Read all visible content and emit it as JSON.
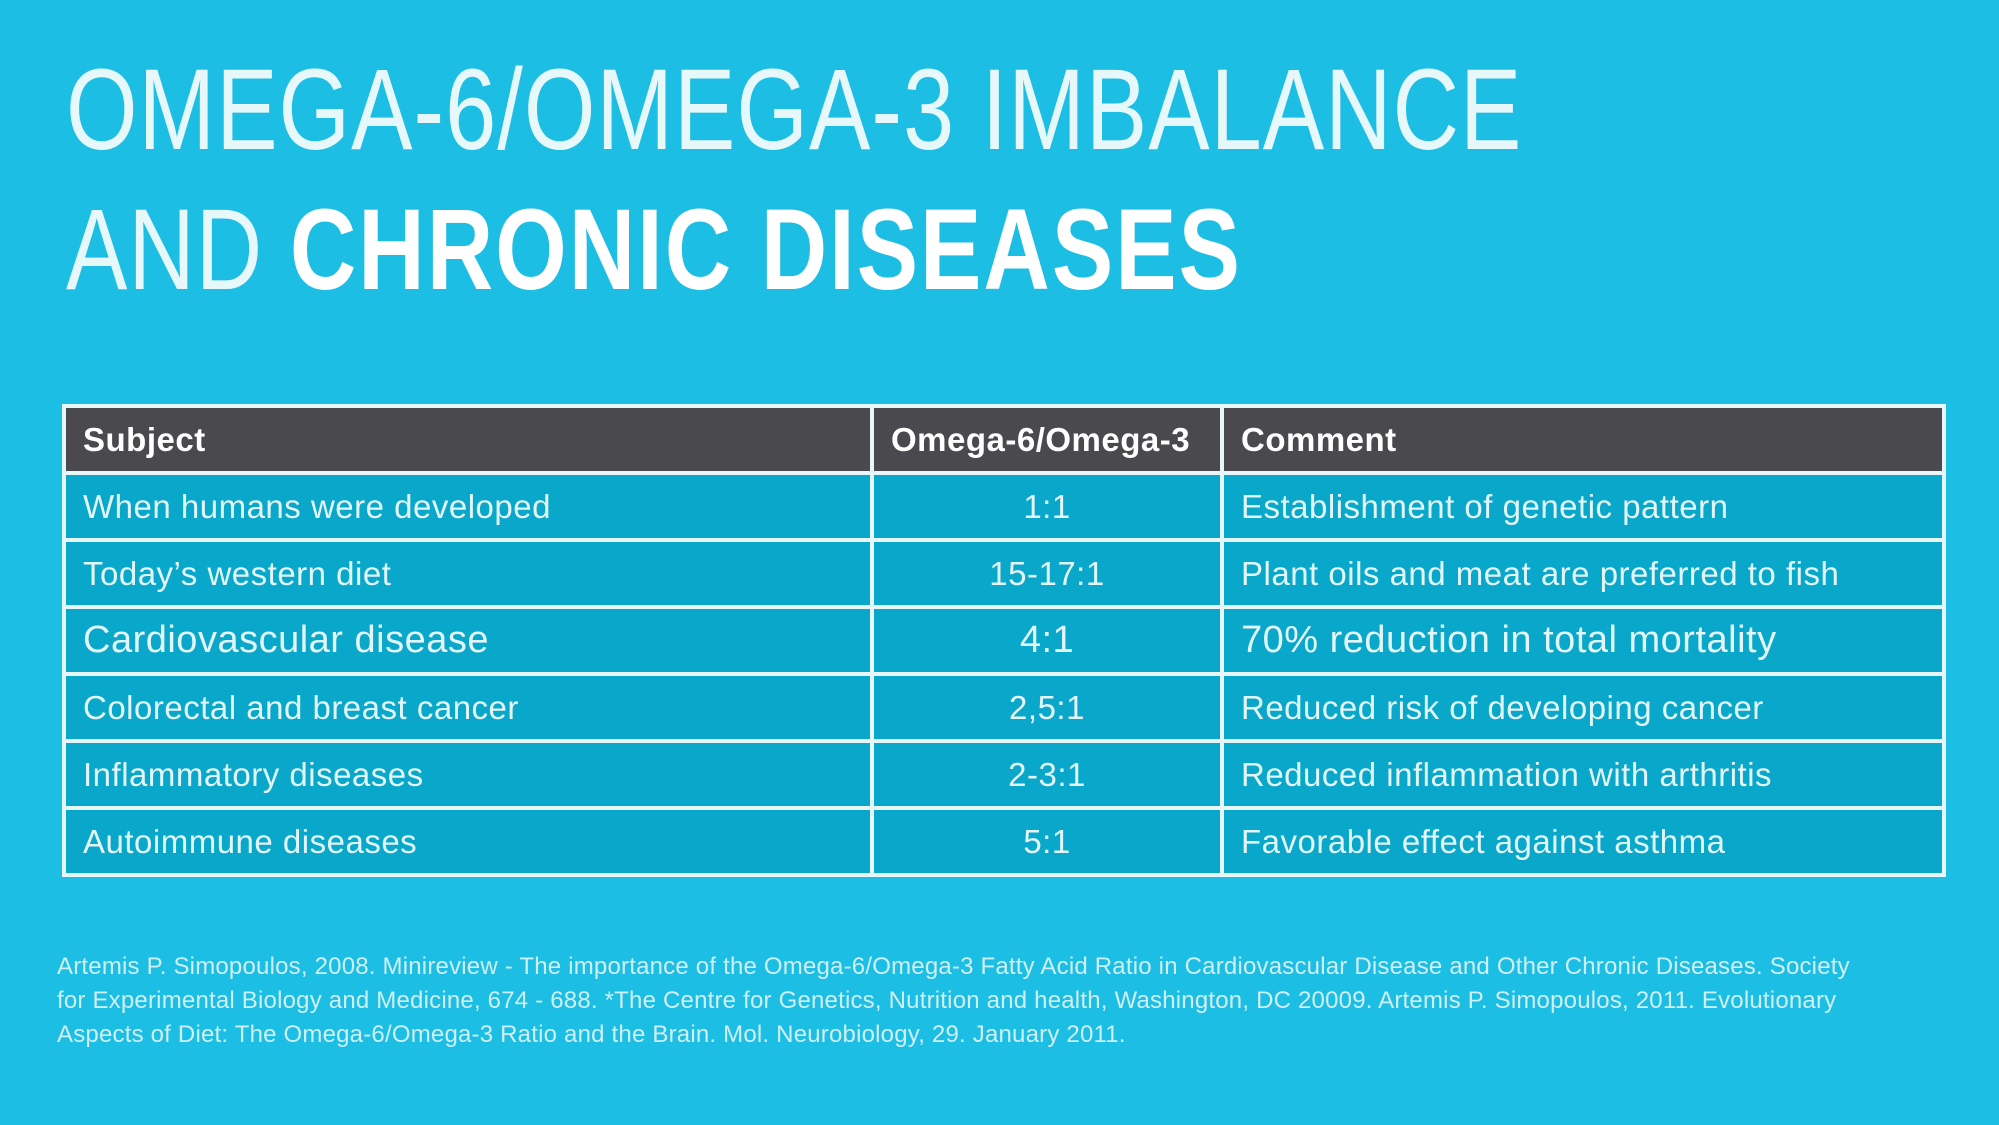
{
  "colors": {
    "background": "#1DBEE4",
    "cell_background": "#09A7C9",
    "header_background": "#4A494D",
    "border": "#E7F6F9",
    "title_thin": "#E6F8FA",
    "title_bold": "#FFFFFF",
    "citation_text": "#CDEFF5"
  },
  "title": {
    "line1": "OMEGA-6/OMEGA-3 IMBALANCE",
    "line2_thin": "AND ",
    "line2_bold": "CHRONIC DISEASES"
  },
  "table": {
    "columns": [
      "Subject",
      "Omega-6/Omega-3",
      "Comment"
    ],
    "rows": [
      {
        "subject": "When humans were developed",
        "ratio": "1:1",
        "comment": "Establishment of genetic pattern",
        "emphasis": false
      },
      {
        "subject": "Today’s western diet",
        "ratio": "15-17:1",
        "comment": "Plant oils and meat are preferred to fish",
        "emphasis": false
      },
      {
        "subject": "Cardiovascular disease",
        "ratio": "4:1",
        "comment": "70% reduction in total mortality",
        "emphasis": true
      },
      {
        "subject": "Colorectal and breast cancer",
        "ratio": "2,5:1",
        "comment": "Reduced risk of developing cancer",
        "emphasis": false
      },
      {
        "subject": "Inflammatory diseases",
        "ratio": "2-3:1",
        "comment": "Reduced inflammation with arthritis",
        "emphasis": false
      },
      {
        "subject": "Autoimmune diseases",
        "ratio": "5:1",
        "comment": "Favorable effect against asthma",
        "emphasis": false
      }
    ]
  },
  "footer": {
    "lines": [
      "Artemis P. Simopoulos, 2008. Minireview - The importance of the Omega-6/Omega-3 Fatty Acid Ratio in Cardiovascular Disease and Other Chronic Diseases. Society",
      "for Experimental Biology and Medicine, 674 - 688.  *The Centre for Genetics, Nutrition and health, Washington, DC 20009. Artemis P. Simopoulos, 2011. Evolutionary",
      "Aspects of Diet: The Omega-6/Omega-3 Ratio and the Brain. Mol. Neurobiology, 29. January 2011."
    ]
  },
  "chart_data": {
    "type": "table",
    "title": "OMEGA-6/OMEGA-3 IMBALANCE AND CHRONIC DISEASES",
    "columns": [
      "Subject",
      "Omega-6/Omega-3",
      "Comment"
    ],
    "rows": [
      [
        "When humans were developed",
        "1:1",
        "Establishment of genetic pattern"
      ],
      [
        "Today’s western diet",
        "15-17:1",
        "Plant oils and meat are preferred to fish"
      ],
      [
        "Cardiovascular disease",
        "4:1",
        "70% reduction in total mortality"
      ],
      [
        "Colorectal and breast cancer",
        "2,5:1",
        "Reduced risk of developing cancer"
      ],
      [
        "Inflammatory diseases",
        "2-3:1",
        "Reduced inflammation with arthritis"
      ],
      [
        "Autoimmune diseases",
        "5:1",
        "Favorable effect against asthma"
      ]
    ]
  }
}
